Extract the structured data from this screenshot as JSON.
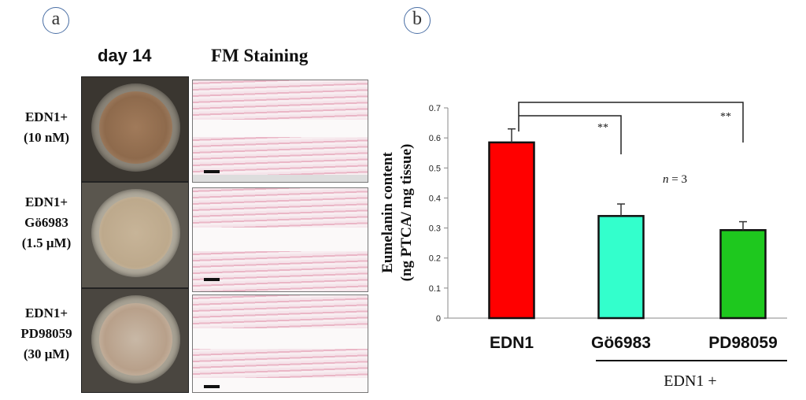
{
  "panel_a": {
    "letter": "a",
    "col1_header": "day 14",
    "col2_header": "FM Staining",
    "rows": [
      {
        "line1": "EDN1+",
        "line2": "(10 nM)",
        "line3": ""
      },
      {
        "line1": "EDN1+",
        "line2": "Gö6983",
        "line3": "(1.5 μM)"
      },
      {
        "line1": "EDN1+",
        "line2": "PD98059",
        "line3": "(30 μM)"
      }
    ]
  },
  "panel_b": {
    "letter": "b",
    "bracket_note": "EDN1 +",
    "n_label": "n",
    "n_value": " = 3",
    "significance": [
      "**",
      "**"
    ]
  },
  "chart_data": {
    "type": "bar",
    "title": "",
    "ylabel_line1": "Eumelanin content",
    "ylabel_line2": "(ng PTCA/ mg tissue)",
    "xlabel": "",
    "categories": [
      "EDN1",
      "Gö6983",
      "PD98059"
    ],
    "values": [
      0.585,
      0.34,
      0.293
    ],
    "errors": [
      0.045,
      0.04,
      0.028
    ],
    "colors": [
      "#ff0000",
      "#33ffcc",
      "#1ec81e"
    ],
    "ylim": [
      0,
      0.7
    ],
    "yticks": [
      "0",
      "0.1",
      "0.2",
      "0.3",
      "0.4",
      "0.5",
      "0.6",
      "0.7"
    ],
    "grid": false,
    "legend": "none"
  }
}
